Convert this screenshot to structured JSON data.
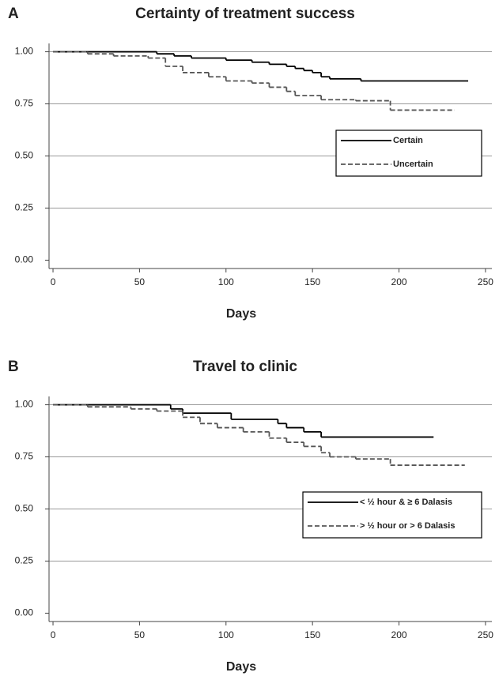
{
  "chart_data": [
    {
      "type": "step",
      "panel": "A",
      "title": "Certainty of treatment success",
      "x_label": "Days",
      "xlim": [
        -2.3,
        253.7
      ],
      "ylim": [
        -0.04,
        1.04
      ],
      "xticks": [
        0,
        50,
        100,
        150,
        200,
        250
      ],
      "yticks": [
        {
          "value": 0,
          "label": "0.00"
        },
        {
          "value": 0.25,
          "label": "0.25"
        },
        {
          "value": 0.5,
          "label": "0.50"
        },
        {
          "value": 0.75,
          "label": "0.75"
        },
        {
          "value": 1,
          "label": "1.00"
        }
      ],
      "grid": true,
      "legend": "center right",
      "series": [
        {
          "name": "Certain",
          "color": "#000000",
          "line_style": "solid",
          "x": [
            0,
            60,
            70,
            80,
            100,
            115,
            125,
            135,
            140,
            145,
            150,
            155,
            160,
            178,
            240
          ],
          "values": [
            1,
            0.99,
            0.98,
            0.97,
            0.96,
            0.95,
            0.94,
            0.93,
            0.92,
            0.91,
            0.9,
            0.88,
            0.87,
            0.86,
            0.86
          ]
        },
        {
          "name": "Uncertain",
          "color": "#555555",
          "line_style": "dashed",
          "x": [
            0,
            20,
            35,
            55,
            65,
            75,
            90,
            100,
            115,
            125,
            135,
            140,
            155,
            175,
            195,
            232
          ],
          "values": [
            1,
            0.99,
            0.98,
            0.97,
            0.93,
            0.9,
            0.88,
            0.86,
            0.85,
            0.83,
            0.81,
            0.79,
            0.77,
            0.765,
            0.72,
            0.72
          ]
        }
      ]
    },
    {
      "type": "step",
      "panel": "B",
      "title": "Travel to clinic",
      "x_label": "Days",
      "xlim": [
        -2.3,
        253.7
      ],
      "ylim": [
        -0.04,
        1.04
      ],
      "xticks": [
        0,
        50,
        100,
        150,
        200,
        250
      ],
      "yticks": [
        {
          "value": 0,
          "label": "0.00"
        },
        {
          "value": 0.25,
          "label": "0.25"
        },
        {
          "value": 0.5,
          "label": "0.50"
        },
        {
          "value": 0.75,
          "label": "0.75"
        },
        {
          "value": 1,
          "label": "1.00"
        }
      ],
      "grid": true,
      "legend": "lower right",
      "series": [
        {
          "name": "< ½ hour & ≥ 6 Dalasis",
          "color": "#000000",
          "line_style": "solid",
          "x": [
            0,
            68,
            75,
            103,
            130,
            135,
            145,
            155,
            220
          ],
          "values": [
            1,
            0.98,
            0.96,
            0.93,
            0.91,
            0.89,
            0.87,
            0.845,
            0.845
          ]
        },
        {
          "name": "> ½ hour or > 6 Dalasis",
          "color": "#555555",
          "line_style": "dashed",
          "x": [
            0,
            20,
            45,
            60,
            75,
            85,
            95,
            110,
            125,
            135,
            145,
            155,
            160,
            175,
            195,
            238
          ],
          "values": [
            1,
            0.99,
            0.98,
            0.97,
            0.94,
            0.91,
            0.89,
            0.87,
            0.84,
            0.82,
            0.8,
            0.77,
            0.75,
            0.74,
            0.71,
            0.71
          ]
        }
      ]
    }
  ]
}
